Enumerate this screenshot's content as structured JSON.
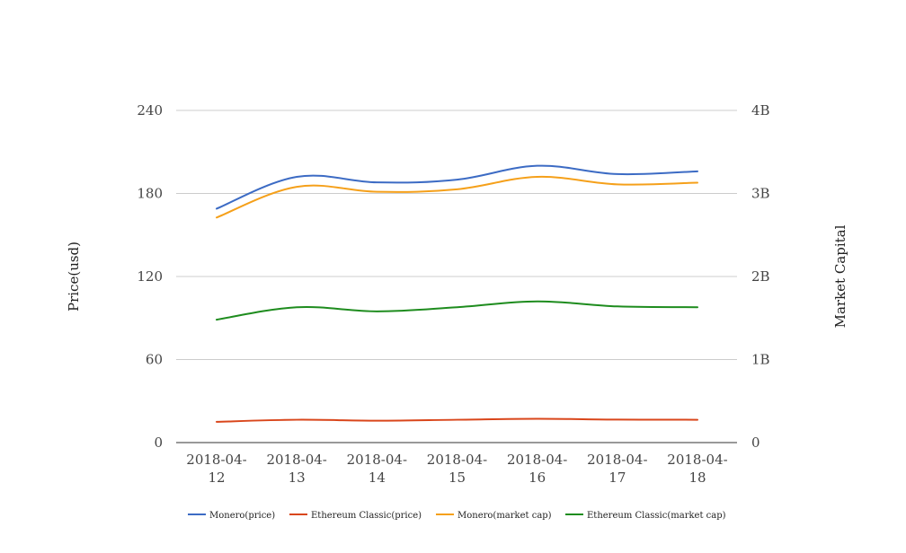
{
  "chart_data": {
    "type": "line",
    "title": "",
    "x": [
      "2018-04-12",
      "2018-04-13",
      "2018-04-14",
      "2018-04-15",
      "2018-04-16",
      "2018-04-17",
      "2018-04-18"
    ],
    "x_tick_labels": [
      [
        "2018-04-",
        "12"
      ],
      [
        "2018-04-",
        "13"
      ],
      [
        "2018-04-",
        "14"
      ],
      [
        "2018-04-",
        "15"
      ],
      [
        "2018-04-",
        "16"
      ],
      [
        "2018-04-",
        "17"
      ],
      [
        "2018-04-",
        "18"
      ]
    ],
    "ylabel_left": "Price(usd)",
    "ylabel_right": "Market Capital",
    "ylim_left": [
      0,
      240
    ],
    "ylim_right": [
      0,
      4000000000
    ],
    "yticks_left": [
      0,
      60,
      120,
      180,
      240
    ],
    "yticks_left_labels": [
      "0",
      "60",
      "120",
      "180",
      "240"
    ],
    "yticks_right_labels": [
      "0",
      "1B",
      "2B",
      "3B",
      "4B"
    ],
    "grid": true,
    "legend_position": "bottom",
    "series": [
      {
        "name": "Monero(price)",
        "axis": "left",
        "color": "#3c6bc4",
        "values": [
          169,
          192,
          188,
          190,
          200,
          194,
          196
        ]
      },
      {
        "name": "Ethereum Classic(price)",
        "axis": "left",
        "color": "#d9461b",
        "values": [
          15,
          16.5,
          15.8,
          16.5,
          17.2,
          16.6,
          16.5
        ]
      },
      {
        "name": "Monero(market cap)",
        "axis": "right",
        "color": "#f5a01a",
        "values": [
          2710000000,
          3080000000,
          3020000000,
          3050000000,
          3200000000,
          3110000000,
          3130000000
        ]
      },
      {
        "name": "Ethereum Classic(market cap)",
        "axis": "right",
        "color": "#1e8c1e",
        "values": [
          1480000000,
          1630000000,
          1580000000,
          1630000000,
          1700000000,
          1640000000,
          1630000000
        ]
      }
    ]
  }
}
